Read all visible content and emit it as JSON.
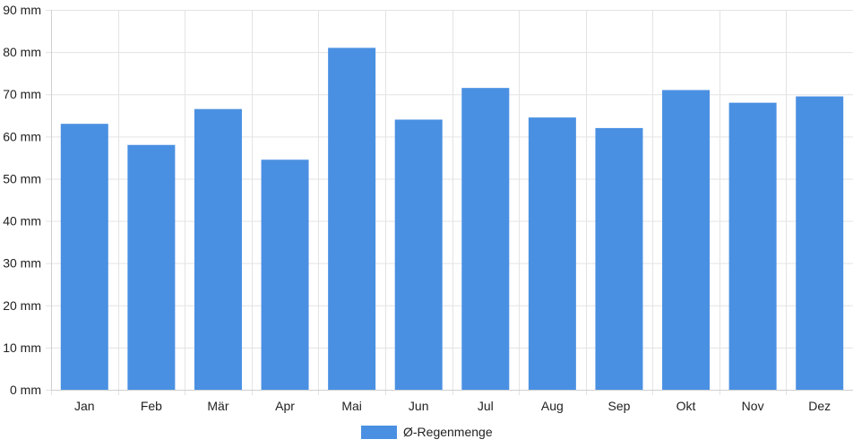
{
  "chart_data": {
    "type": "bar",
    "categories": [
      "Jan",
      "Feb",
      "Mär",
      "Apr",
      "Mai",
      "Jun",
      "Jul",
      "Aug",
      "Sep",
      "Okt",
      "Nov",
      "Dez"
    ],
    "series": [
      {
        "name": "Ø-Regenmenge",
        "values": [
          63,
          58,
          66.5,
          54.5,
          81,
          64,
          71.5,
          64.5,
          62,
          71,
          68,
          69.5
        ],
        "color": "#4a90e2"
      }
    ],
    "y_ticks": [
      "0 mm",
      "10 mm",
      "20 mm",
      "30 mm",
      "40 mm",
      "50 mm",
      "60 mm",
      "70 mm",
      "80 mm",
      "90 mm"
    ],
    "ylim": [
      0,
      90
    ],
    "y_step": 10,
    "grid": true,
    "legend_position": "bottom-center"
  }
}
